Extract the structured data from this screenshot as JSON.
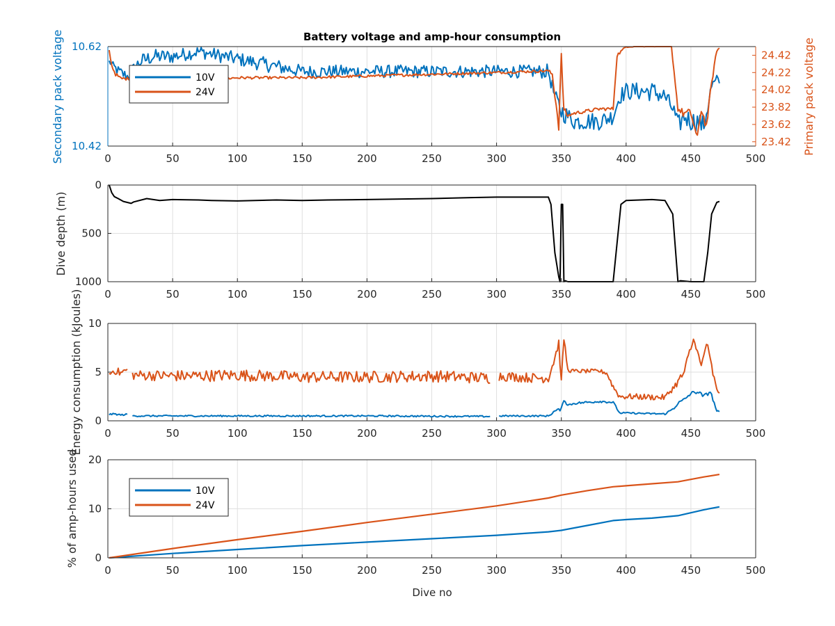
{
  "colors": {
    "series_10v": "#0072BD",
    "series_24v": "#D95319",
    "depth": "#000000",
    "axis": "#262626",
    "grid": "#DFDFDF"
  },
  "chart_data": [
    {
      "type": "line",
      "title": "Battery voltage and amp-hour consumption",
      "xlabel": "",
      "ylabel": "Secondary pack voltage",
      "ylabel_right": "Primary pack voltage",
      "xlim": [
        0,
        500
      ],
      "ylim": [
        10.42,
        10.62
      ],
      "ylim_right": [
        23.37,
        24.52
      ],
      "xticks": [
        "0",
        "50",
        "100",
        "150",
        "200",
        "250",
        "300",
        "350",
        "400",
        "450",
        "500"
      ],
      "yticks": [
        "10.42",
        "10.62"
      ],
      "yticks_right": [
        "23.42",
        "23.62",
        "23.82",
        "24.02",
        "24.22",
        "24.42"
      ],
      "grid": true,
      "legend": {
        "position": "top-left",
        "entries": [
          "10V",
          "24V"
        ]
      },
      "series": [
        {
          "name": "10V",
          "axis": "left",
          "x": [
            1,
            8,
            15,
            25,
            35,
            50,
            70,
            90,
            110,
            130,
            150,
            170,
            190,
            210,
            230,
            250,
            270,
            290,
            310,
            330,
            340,
            345,
            350,
            355,
            360,
            370,
            380,
            390,
            395,
            400,
            410,
            420,
            430,
            437,
            440,
            445,
            450,
            455,
            460,
            463,
            466,
            470,
            472
          ],
          "y": [
            10.59,
            10.57,
            10.56,
            10.59,
            10.6,
            10.6,
            10.61,
            10.6,
            10.59,
            10.58,
            10.57,
            10.57,
            10.57,
            10.57,
            10.57,
            10.57,
            10.57,
            10.57,
            10.57,
            10.57,
            10.57,
            10.52,
            10.49,
            10.48,
            10.47,
            10.47,
            10.47,
            10.48,
            10.52,
            10.53,
            10.53,
            10.53,
            10.52,
            10.49,
            10.46,
            10.48,
            10.47,
            10.47,
            10.46,
            10.5,
            10.54,
            10.55,
            10.55
          ],
          "noise": [
            0.005,
            0.012,
            0.012,
            0.015,
            0.015,
            0.014,
            0.013,
            0.014,
            0.014,
            0.015,
            0.013,
            0.013,
            0.013,
            0.013,
            0.013,
            0.013,
            0.013,
            0.013,
            0.013,
            0.013,
            0.015,
            0.014,
            0.02,
            0.018,
            0.018,
            0.018,
            0.018,
            0.016,
            0.016,
            0.018,
            0.018,
            0.02,
            0.018,
            0.016,
            0.02,
            0.02,
            0.02,
            0.02,
            0.02,
            0.018,
            0.016,
            0.014,
            0.01
          ]
        },
        {
          "name": "24V",
          "axis": "right",
          "x": [
            1,
            3,
            6,
            10,
            20,
            40,
            60,
            80,
            100,
            150,
            200,
            250,
            300,
            340,
            343,
            346,
            348,
            350,
            352,
            355,
            360,
            380,
            390,
            393,
            400,
            420,
            435,
            440,
            444,
            450,
            455,
            458,
            462,
            466,
            470,
            472
          ],
          "y": [
            24.48,
            24.3,
            24.2,
            24.15,
            24.15,
            24.11,
            24.12,
            24.14,
            24.16,
            24.16,
            24.18,
            24.2,
            24.22,
            24.24,
            24.2,
            23.85,
            23.6,
            24.4,
            23.78,
            23.72,
            23.75,
            23.8,
            23.8,
            24.42,
            24.52,
            24.53,
            24.52,
            23.8,
            23.75,
            23.75,
            23.45,
            23.8,
            23.6,
            24.1,
            24.48,
            24.5
          ],
          "noise": [
            0,
            0.02,
            0.02,
            0.02,
            0.015,
            0.015,
            0.015,
            0.015,
            0.015,
            0.015,
            0.015,
            0.015,
            0.015,
            0.015,
            0.03,
            0.05,
            0.05,
            0.05,
            0.05,
            0.02,
            0.02,
            0.02,
            0.02,
            0.02,
            0.01,
            0.01,
            0.01,
            0.03,
            0.05,
            0.05,
            0.05,
            0.05,
            0.05,
            0.03,
            0.02,
            0.01
          ]
        }
      ]
    },
    {
      "type": "line",
      "title": "",
      "xlabel": "",
      "ylabel": "Dive depth (m)",
      "xlim": [
        0,
        500
      ],
      "ylim": [
        0,
        1000
      ],
      "yreverse": true,
      "xticks": [
        "0",
        "50",
        "100",
        "150",
        "200",
        "250",
        "300",
        "350",
        "400",
        "450",
        "500"
      ],
      "yticks": [
        "0",
        "500",
        "1000"
      ],
      "grid": true,
      "series": [
        {
          "x": [
            1,
            3,
            5,
            8,
            12,
            15,
            18,
            20,
            30,
            40,
            50,
            70,
            80,
            100,
            130,
            150,
            170,
            200,
            250,
            280,
            300,
            340,
            342,
            345,
            348,
            349,
            350,
            351,
            352,
            353,
            355,
            360,
            380,
            390,
            393,
            396,
            400,
            420,
            430,
            436,
            440,
            442,
            450,
            460,
            463,
            466,
            470,
            472
          ],
          "y": [
            0,
            80,
            120,
            140,
            170,
            180,
            190,
            175,
            140,
            160,
            150,
            155,
            160,
            165,
            155,
            160,
            155,
            150,
            140,
            130,
            125,
            125,
            200,
            700,
            950,
            1000,
            200,
            200,
            1000,
            990,
            1000,
            1000,
            1000,
            1000,
            600,
            200,
            160,
            150,
            160,
            300,
            1000,
            990,
            1000,
            1000,
            700,
            300,
            180,
            170
          ]
        }
      ]
    },
    {
      "type": "line",
      "title": "",
      "xlabel": "",
      "ylabel": "Energy consumption (kJoules)",
      "xlim": [
        0,
        500
      ],
      "ylim": [
        0,
        10
      ],
      "xticks": [
        "0",
        "50",
        "100",
        "150",
        "200",
        "250",
        "300",
        "350",
        "400",
        "450",
        "500"
      ],
      "yticks": [
        "0",
        "5",
        "10"
      ],
      "grid": true,
      "series": [
        {
          "name": "24V",
          "gaps": [
            [
              15,
              19
            ],
            [
              295,
              302
            ]
          ],
          "x": [
            1,
            5,
            10,
            14,
            20,
            60,
            100,
            150,
            200,
            250,
            294,
            303,
            330,
            340,
            345,
            348,
            350,
            352,
            355,
            360,
            380,
            385,
            390,
            395,
            400,
            430,
            437,
            440,
            445,
            450,
            453,
            455,
            458,
            462,
            466,
            470,
            472
          ],
          "y": [
            4.8,
            5.2,
            4.9,
            5.2,
            4.7,
            4.6,
            4.7,
            4.5,
            4.5,
            4.6,
            4.4,
            4.6,
            4.4,
            4.4,
            6.5,
            8.0,
            4.0,
            8.5,
            5.2,
            5.1,
            5.1,
            4.9,
            3.5,
            2.5,
            2.5,
            2.4,
            3.5,
            4.0,
            5.0,
            7.5,
            8.5,
            7.0,
            5.5,
            8.0,
            5.5,
            3.0,
            3.0
          ],
          "noise": [
            0.4,
            0.4,
            0.4,
            0.4,
            0.5,
            0.6,
            0.6,
            0.6,
            0.6,
            0.6,
            0.6,
            0.5,
            0.5,
            0.5,
            0.5,
            0.4,
            0.3,
            0.4,
            0.2,
            0.2,
            0.2,
            0.2,
            0.3,
            0.3,
            0.3,
            0.3,
            0.3,
            0.4,
            0.5,
            0.6,
            0.5,
            0.5,
            0.5,
            0.5,
            0.5,
            0.4,
            0.3
          ]
        },
        {
          "name": "10V",
          "gaps": [
            [
              15,
              19
            ],
            [
              295,
              302
            ]
          ],
          "x": [
            1,
            5,
            10,
            14,
            20,
            100,
            200,
            294,
            303,
            340,
            345,
            350,
            352,
            355,
            360,
            380,
            390,
            395,
            400,
            430,
            437,
            440,
            445,
            450,
            455,
            460,
            465,
            470,
            472
          ],
          "y": [
            0.65,
            0.7,
            0.6,
            0.65,
            0.5,
            0.5,
            0.5,
            0.45,
            0.5,
            0.5,
            1.0,
            1.2,
            2.2,
            1.6,
            1.8,
            2.0,
            1.9,
            0.8,
            0.8,
            0.7,
            1.3,
            1.8,
            2.2,
            2.8,
            3.0,
            2.5,
            3.0,
            1.0,
            0.9
          ],
          "noise": [
            0.08,
            0.08,
            0.08,
            0.08,
            0.08,
            0.08,
            0.08,
            0.08,
            0.08,
            0.08,
            0.15,
            0.15,
            0.15,
            0.12,
            0.12,
            0.12,
            0.12,
            0.08,
            0.08,
            0.08,
            0.1,
            0.15,
            0.15,
            0.2,
            0.2,
            0.2,
            0.2,
            0.1,
            0.08
          ]
        }
      ]
    },
    {
      "type": "line",
      "title": "",
      "xlabel": "Dive no",
      "ylabel": "% of amp-hours used",
      "xlim": [
        0,
        500
      ],
      "ylim": [
        0,
        20
      ],
      "xticks": [
        "0",
        "50",
        "100",
        "150",
        "200",
        "250",
        "300",
        "350",
        "400",
        "450",
        "500"
      ],
      "yticks": [
        "0",
        "10",
        "20"
      ],
      "grid": true,
      "legend": {
        "position": "top-left",
        "entries": [
          "10V",
          "24V"
        ]
      },
      "series": [
        {
          "name": "10V",
          "x": [
            1,
            50,
            100,
            150,
            200,
            250,
            300,
            340,
            350,
            370,
            390,
            400,
            420,
            440,
            460,
            472
          ],
          "y": [
            0,
            0.9,
            1.7,
            2.5,
            3.2,
            3.9,
            4.6,
            5.3,
            5.6,
            6.6,
            7.6,
            7.8,
            8.1,
            8.6,
            9.8,
            10.4
          ]
        },
        {
          "name": "24V",
          "x": [
            1,
            50,
            100,
            150,
            200,
            250,
            300,
            340,
            350,
            370,
            390,
            400,
            420,
            440,
            460,
            472
          ],
          "y": [
            0,
            1.9,
            3.7,
            5.4,
            7.2,
            8.9,
            10.6,
            12.2,
            12.8,
            13.7,
            14.5,
            14.7,
            15.1,
            15.5,
            16.5,
            17.0
          ]
        }
      ]
    }
  ]
}
